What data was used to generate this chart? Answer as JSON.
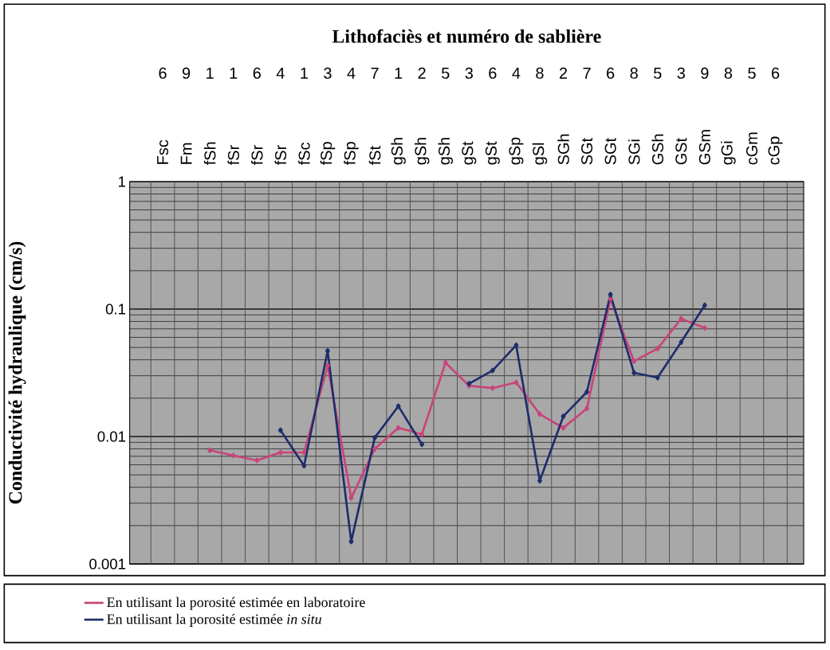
{
  "chart_data": {
    "type": "line",
    "title": "Lithofaciès et numéro de sablière",
    "ylabel": "Conductivité hydraulique (cm/s)",
    "categories": [
      "Fsc",
      "Fm",
      "fSh",
      "fSr",
      "fSr",
      "fSr",
      "fSc",
      "fSp",
      "fSp",
      "fSt",
      "gSh",
      "gSh",
      "gSh",
      "gSt",
      "gSt",
      "gSp",
      "gSl",
      "SGh",
      "SGt",
      "SGt",
      "SGi",
      "GSh",
      "GSt",
      "GSm",
      "gGi",
      "cGm",
      "cGp"
    ],
    "annotations": [
      "6",
      "9",
      "1",
      "1",
      "6",
      "4",
      "1",
      "3",
      "4",
      "7",
      "1",
      "2",
      "5",
      "3",
      "6",
      "4",
      "8",
      "2",
      "7",
      "6",
      "8",
      "5",
      "3",
      "9",
      "8",
      "5",
      "6"
    ],
    "series": [
      {
        "name": "En utilisant la porosité estimée en laboratoire",
        "color": "#c8457a",
        "values": [
          null,
          null,
          0.0078,
          0.0071,
          0.0065,
          0.0075,
          0.0075,
          0.036,
          0.0033,
          0.008,
          0.0117,
          0.0104,
          0.038,
          0.025,
          0.024,
          0.0266,
          0.015,
          0.0117,
          0.0166,
          0.12,
          0.039,
          0.049,
          0.084,
          0.071,
          null,
          null,
          null
        ]
      },
      {
        "name": "En utilisant la porosité estimée *in situ*",
        "color": "#1f2d6b",
        "values": [
          null,
          null,
          null,
          null,
          null,
          0.0112,
          0.0059,
          0.047,
          0.0015,
          0.0098,
          0.0173,
          0.0087,
          null,
          0.026,
          0.033,
          0.052,
          0.0045,
          0.0144,
          0.0224,
          0.13,
          0.0316,
          0.029,
          0.055,
          0.107,
          null,
          null,
          null
        ]
      }
    ],
    "log": "y",
    "ylim": [
      0.001,
      1
    ],
    "yticks": [
      0.001,
      0.01,
      0.1,
      1
    ],
    "grid": true,
    "legend": "bottom",
    "marker": "diamond",
    "line_style": "solid"
  }
}
